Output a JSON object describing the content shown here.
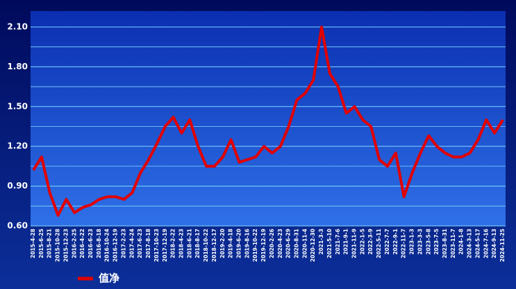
{
  "chart_data": {
    "type": "line",
    "categories": [
      "2015-4-28",
      "2015-6-25",
      "2015-8-21",
      "2015-10-28",
      "2015-12-23",
      "2016-2-25",
      "2016-4-22",
      "2016-6-23",
      "2016-8-18",
      "2016-10-24",
      "2016-12-19",
      "2017-2-23",
      "2017-4-24",
      "2017-6-23",
      "2017-8-18",
      "2017-10-23",
      "2017-12-19",
      "2018-2-22",
      "2018-4-23",
      "2018-6-21",
      "2018-8-17",
      "2018-10-22",
      "2018-12-17",
      "2019-2-20",
      "2019-4-18",
      "2019-6-20",
      "2019-8-16",
      "2019-10-22",
      "2019-12-19",
      "2020-2-26",
      "2020-4-23",
      "2020-6-29",
      "2020-8-31",
      "2020-11-4",
      "2020-12-30",
      "2021-3-3",
      "2021-5-10",
      "2021-7-6",
      "2021-9-1",
      "2021-11-9",
      "2022-1-5",
      "2022-3-9",
      "2022-5-11",
      "2022-7-7",
      "2022-9-1",
      "2022-11-7",
      "2023-1-3",
      "2023-3-3",
      "2023-5-8",
      "2023-7-5",
      "2023-8-31",
      "2023-11-7",
      "2024-1-8",
      "2024-3-13",
      "2024-5-17",
      "2024-7-16",
      "2024-9-13",
      "2024-11-25"
    ],
    "series": [
      {
        "name": "值净",
        "color": "#e00000",
        "values": [
          1.02,
          1.12,
          0.85,
          0.68,
          0.8,
          0.7,
          0.74,
          0.76,
          0.8,
          0.82,
          0.82,
          0.8,
          0.85,
          1.0,
          1.1,
          1.22,
          1.35,
          1.42,
          1.3,
          1.4,
          1.2,
          1.05,
          1.05,
          1.12,
          1.25,
          1.08,
          1.1,
          1.12,
          1.2,
          1.15,
          1.2,
          1.35,
          1.55,
          1.6,
          1.7,
          2.1,
          1.75,
          1.65,
          1.45,
          1.5,
          1.4,
          1.35,
          1.1,
          1.05,
          1.15,
          0.82,
          1.0,
          1.15,
          1.28,
          1.2,
          1.15,
          1.12,
          1.12,
          1.15,
          1.25,
          1.4,
          1.3,
          1.4
        ]
      }
    ],
    "ylim": [
      0.6,
      2.22
    ],
    "yticks": [
      {
        "value": 0.6,
        "label": "0.60"
      },
      {
        "value": 0.9,
        "label": "0.90"
      },
      {
        "value": 1.2,
        "label": "1.20"
      },
      {
        "value": 1.5,
        "label": "1.50"
      },
      {
        "value": 1.8,
        "label": "1.80"
      },
      {
        "value": 2.1,
        "label": "2.10"
      }
    ],
    "minor_yticks": [
      0.75,
      1.05,
      1.35,
      1.65,
      1.95
    ],
    "grid": true,
    "legend": "bottom-left"
  }
}
